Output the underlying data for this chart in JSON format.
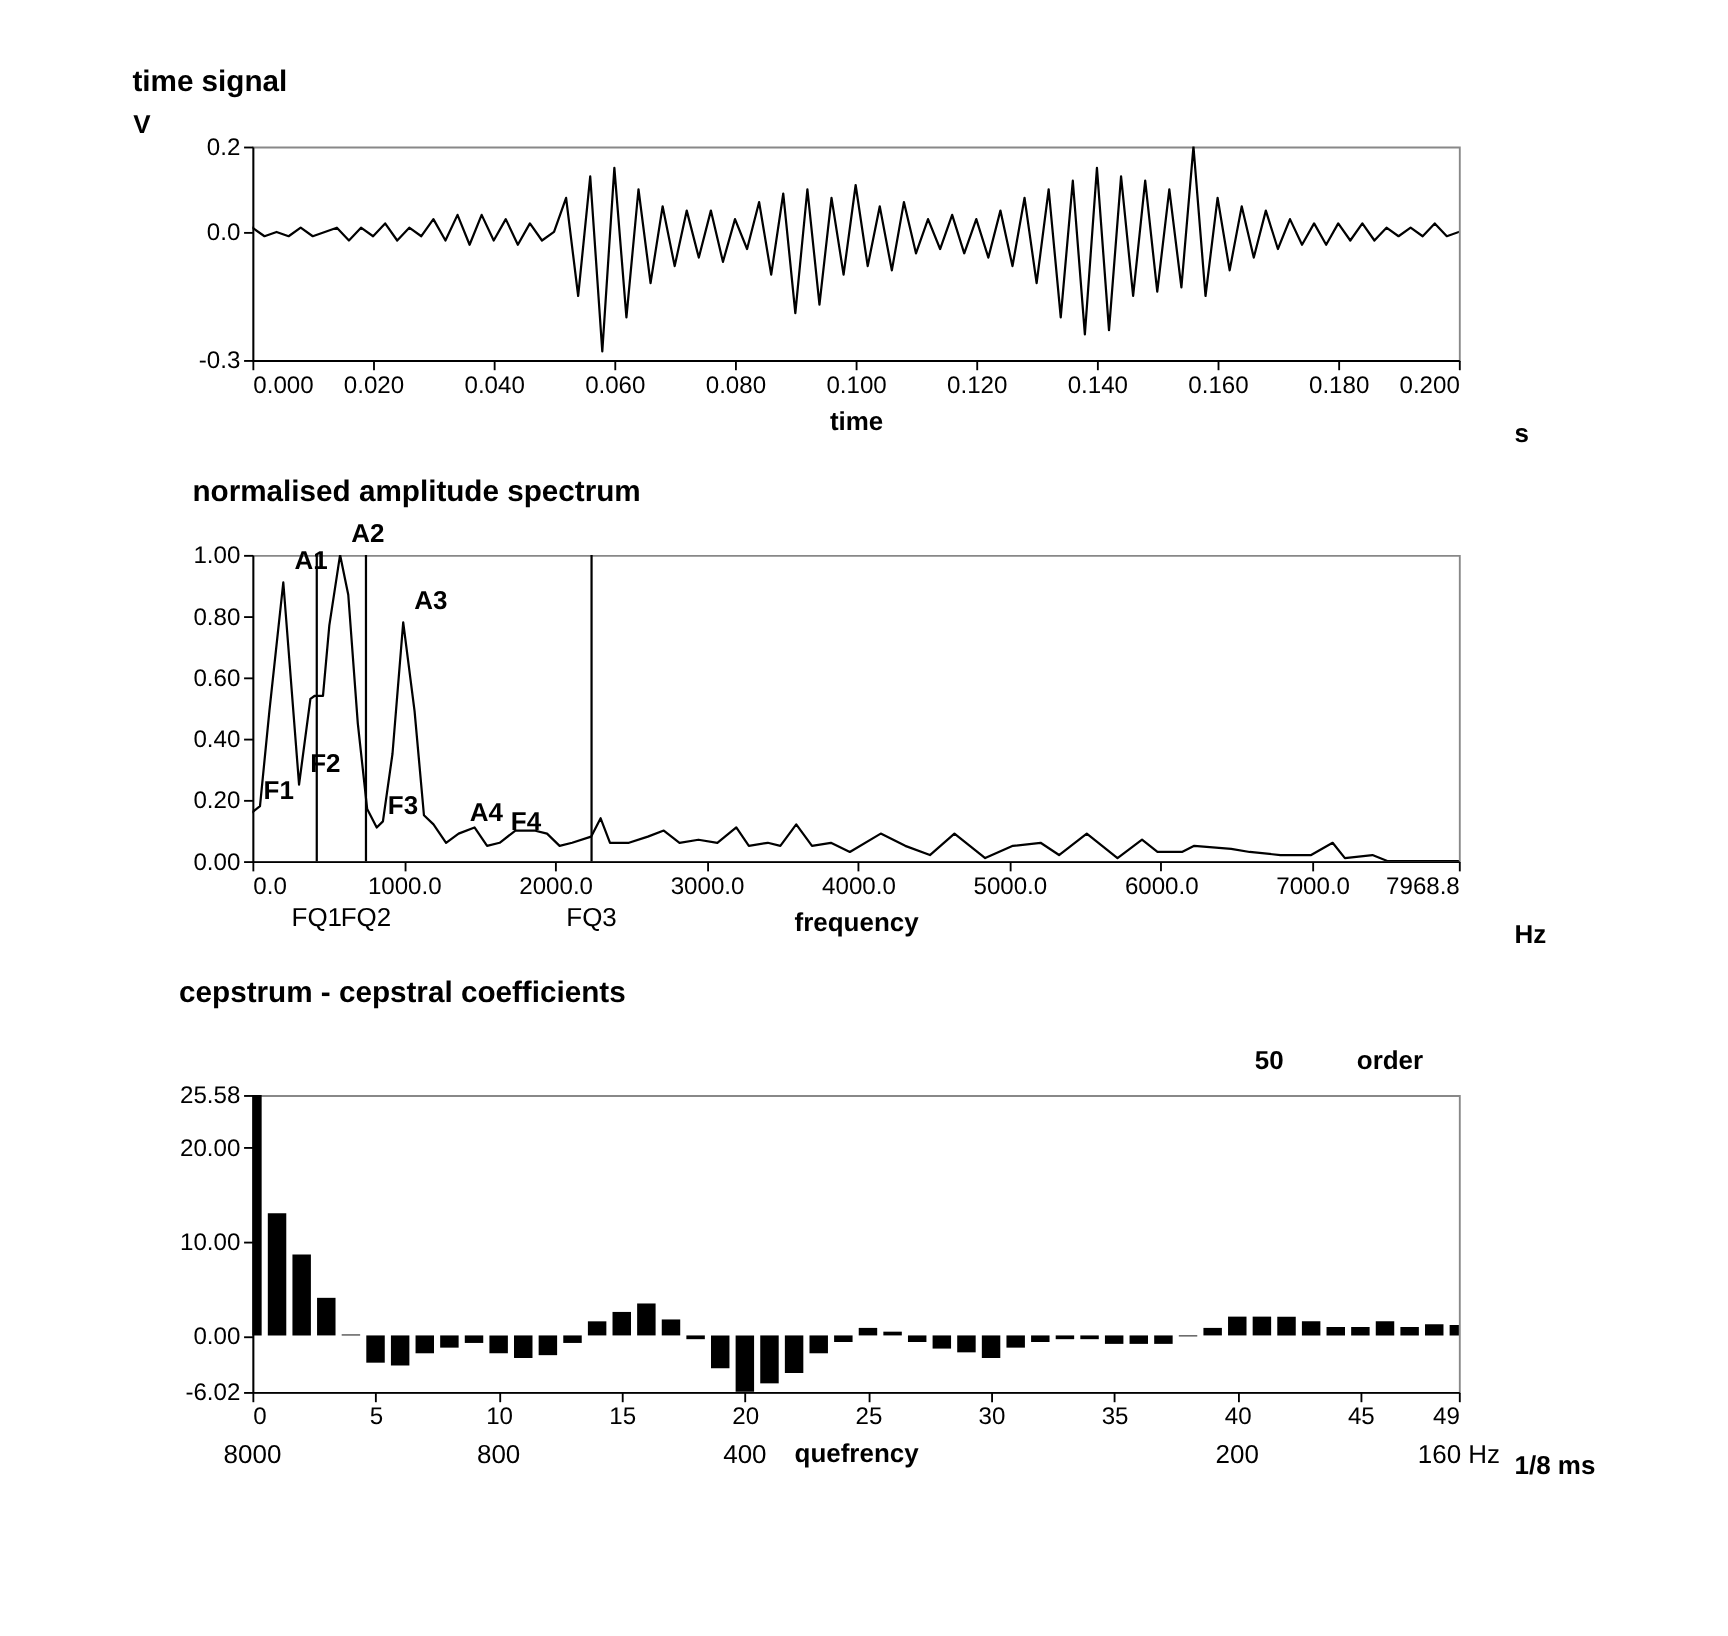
{
  "chart_data": [
    {
      "type": "line",
      "title": "time signal",
      "xlabel": "time",
      "ylabel": "V",
      "annotations": [
        "s"
      ],
      "xlim": [
        0,
        0.2
      ],
      "xticks": [
        {
          "value": 0,
          "label": "0.000"
        },
        {
          "value": 0.02,
          "label": "0.020"
        },
        {
          "value": 0.04,
          "label": "0.040"
        },
        {
          "value": 0.06,
          "label": "0.060"
        },
        {
          "value": 0.08,
          "label": "0.080"
        },
        {
          "value": 0.1,
          "label": "0.100"
        },
        {
          "value": 0.12,
          "label": "0.120"
        },
        {
          "value": 0.14,
          "label": "0.140"
        },
        {
          "value": 0.16,
          "label": "0.160"
        },
        {
          "value": 0.18,
          "label": "0.180"
        },
        {
          "value": 0.2,
          "label": "0.200"
        }
      ],
      "ylim": [
        -0.3,
        0.2
      ],
      "yticks": [
        {
          "value": -0.3,
          "label": "-0.3"
        },
        {
          "value": 0,
          "label": "0.0"
        },
        {
          "value": 0.2,
          "label": "0.2"
        }
      ],
      "x": [
        0,
        0.002,
        0.004,
        0.006,
        0.008,
        0.01,
        0.012,
        0.014,
        0.016,
        0.018,
        0.02,
        0.022,
        0.024,
        0.026,
        0.028,
        0.03,
        0.032,
        0.034,
        0.036,
        0.038,
        0.04,
        0.042,
        0.044,
        0.046,
        0.048,
        0.05,
        0.052,
        0.054,
        0.056,
        0.058,
        0.06,
        0.062,
        0.064,
        0.066,
        0.068,
        0.07,
        0.072,
        0.074,
        0.076,
        0.078,
        0.08,
        0.082,
        0.084,
        0.086,
        0.088,
        0.09,
        0.092,
        0.094,
        0.096,
        0.098,
        0.1,
        0.102,
        0.104,
        0.106,
        0.108,
        0.11,
        0.112,
        0.114,
        0.116,
        0.118,
        0.12,
        0.122,
        0.124,
        0.126,
        0.128,
        0.13,
        0.132,
        0.134,
        0.136,
        0.138,
        0.14,
        0.142,
        0.144,
        0.146,
        0.148,
        0.15,
        0.152,
        0.154,
        0.156,
        0.158,
        0.16,
        0.162,
        0.164,
        0.166,
        0.168,
        0.17,
        0.172,
        0.174,
        0.176,
        0.178,
        0.18,
        0.182,
        0.184,
        0.186,
        0.188,
        0.19,
        0.192,
        0.194,
        0.196,
        0.198,
        0.2
      ],
      "series": [
        {
          "color": "#000000",
          "values": [
            0.01,
            -0.01,
            0.0,
            -0.01,
            0.01,
            -0.01,
            0.0,
            0.01,
            -0.02,
            0.01,
            -0.01,
            0.02,
            -0.02,
            0.01,
            -0.01,
            0.03,
            -0.02,
            0.04,
            -0.03,
            0.04,
            -0.02,
            0.03,
            -0.03,
            0.02,
            -0.02,
            0.0,
            0.08,
            -0.15,
            0.13,
            -0.28,
            0.15,
            -0.2,
            0.1,
            -0.12,
            0.06,
            -0.08,
            0.05,
            -0.06,
            0.05,
            -0.07,
            0.03,
            -0.04,
            0.07,
            -0.1,
            0.09,
            -0.19,
            0.1,
            -0.17,
            0.08,
            -0.1,
            0.11,
            -0.08,
            0.06,
            -0.09,
            0.07,
            -0.05,
            0.03,
            -0.04,
            0.04,
            -0.05,
            0.03,
            -0.06,
            0.05,
            -0.08,
            0.08,
            -0.12,
            0.1,
            -0.2,
            0.12,
            -0.24,
            0.15,
            -0.23,
            0.13,
            -0.15,
            0.12,
            -0.14,
            0.1,
            -0.13,
            0.2,
            -0.15,
            0.08,
            -0.09,
            0.06,
            -0.06,
            0.05,
            -0.04,
            0.03,
            -0.03,
            0.02,
            -0.03,
            0.02,
            -0.02,
            0.02,
            -0.02,
            0.01,
            -0.01,
            0.01,
            -0.01,
            0.02,
            -0.01,
            0.0
          ]
        }
      ]
    },
    {
      "type": "line",
      "title": "normalised amplitude spectrum",
      "xlabel": "frequency",
      "annotations": [
        "Hz",
        {
          "text": "A1",
          "x": 204,
          "y": 0.91
        },
        {
          "text": "A2",
          "x": 579,
          "y": 1.0
        },
        {
          "text": "A3",
          "x": 996,
          "y": 0.78
        },
        {
          "text": "A4",
          "x": 1362,
          "y": 0.09
        },
        {
          "text": "F1",
          "x": 0,
          "y": 0.16
        },
        {
          "text": "F2",
          "x": 308,
          "y": 0.25
        },
        {
          "text": "F3",
          "x": 821,
          "y": 0.11
        },
        {
          "text": "F4",
          "x": 1633,
          "y": 0.06
        }
      ],
      "xlim": [
        0,
        7968.8
      ],
      "xticks": [
        {
          "value": 0,
          "label": "0.0"
        },
        {
          "value": 1000,
          "label": "1000.0"
        },
        {
          "value": 2000,
          "label": "2000.0"
        },
        {
          "value": 3000,
          "label": "3000.0"
        },
        {
          "value": 4000,
          "label": "4000.0"
        },
        {
          "value": 5000,
          "label": "5000.0"
        },
        {
          "value": 6000,
          "label": "6000.0"
        },
        {
          "value": 7000,
          "label": "7000.0"
        },
        {
          "value": 7968.8,
          "label": "7968.8"
        }
      ],
      "ylim": [
        0,
        1
      ],
      "yticks": [
        {
          "value": 0,
          "label": "0.00"
        },
        {
          "value": 0.2,
          "label": "0.20"
        },
        {
          "value": 0.4,
          "label": "0.40"
        },
        {
          "value": 0.6,
          "label": "0.60"
        },
        {
          "value": 0.8,
          "label": "0.80"
        },
        {
          "value": 1,
          "label": "1.00"
        }
      ],
      "ref_lines": [
        {
          "axis": "x",
          "value": 425,
          "label": "FQ1",
          "color": "#000000"
        },
        {
          "axis": "x",
          "value": 750,
          "label": "FQ2",
          "color": "#000000"
        },
        {
          "axis": "x",
          "value": 2240,
          "label": "FQ3",
          "color": "#000000"
        }
      ],
      "x": [
        0,
        50,
        112,
        204,
        308,
        383,
        412,
        466,
        508,
        579,
        633,
        696,
        758,
        821,
        862,
        925,
        996,
        1071,
        1133,
        1196,
        1279,
        1362,
        1467,
        1550,
        1633,
        1737,
        1862,
        1946,
        2029,
        2112,
        2237,
        2300,
        2362,
        2487,
        2612,
        2717,
        2821,
        2946,
        3071,
        3196,
        3279,
        3404,
        3487,
        3592,
        3696,
        3821,
        3946,
        4150,
        4312,
        4475,
        4637,
        4840,
        5023,
        5206,
        5328,
        5511,
        5714,
        5876,
        5978,
        6140,
        6221,
        6465,
        6587,
        6790,
        6993,
        7135,
        7216,
        7398,
        7500,
        7968.8
      ],
      "series": [
        {
          "color": "#000000",
          "values": [
            0.16,
            0.18,
            0.49,
            0.91,
            0.25,
            0.53,
            0.54,
            0.54,
            0.77,
            1.0,
            0.87,
            0.45,
            0.17,
            0.11,
            0.13,
            0.35,
            0.78,
            0.49,
            0.15,
            0.12,
            0.06,
            0.09,
            0.11,
            0.05,
            0.06,
            0.1,
            0.1,
            0.09,
            0.05,
            0.06,
            0.08,
            0.14,
            0.06,
            0.06,
            0.08,
            0.1,
            0.06,
            0.07,
            0.06,
            0.11,
            0.05,
            0.06,
            0.05,
            0.12,
            0.05,
            0.06,
            0.03,
            0.09,
            0.05,
            0.02,
            0.09,
            0.01,
            0.05,
            0.06,
            0.02,
            0.09,
            0.01,
            0.07,
            0.03,
            0.03,
            0.05,
            0.04,
            0.03,
            0.02,
            0.02,
            0.06,
            0.01,
            0.02,
            0.0,
            0.0
          ]
        }
      ]
    },
    {
      "type": "bar",
      "title": "cepstrum - cepstral coefficients",
      "xlabel": "quefrency",
      "annotations": [
        "1/8 ms",
        "8000",
        "800",
        "400",
        "200",
        "160 Hz",
        "50",
        "order"
      ],
      "xlim": [
        0,
        49
      ],
      "xticks": [
        0,
        5,
        10,
        15,
        20,
        25,
        30,
        35,
        40,
        45,
        49
      ],
      "ylim": [
        -6.02,
        25.58
      ],
      "yticks": [
        {
          "value": -6.02,
          "label": "-6.02"
        },
        {
          "value": 0,
          "label": "0.00"
        },
        {
          "value": 10,
          "label": "10.00"
        },
        {
          "value": 20,
          "label": "20.00"
        },
        {
          "value": 25.58,
          "label": "25.58"
        }
      ],
      "x": [
        0,
        1,
        2,
        3,
        4,
        5,
        6,
        7,
        8,
        9,
        10,
        11,
        12,
        13,
        14,
        15,
        16,
        17,
        18,
        19,
        20,
        21,
        22,
        23,
        24,
        25,
        26,
        27,
        28,
        29,
        30,
        31,
        32,
        33,
        34,
        35,
        36,
        37,
        38,
        39,
        40,
        41,
        42,
        43,
        44,
        45,
        46,
        47,
        48,
        49
      ],
      "series": [
        {
          "color": "#000000",
          "values": [
            25.58,
            13.0,
            8.6,
            4.0,
            0.1,
            -2.9,
            -3.2,
            -1.9,
            -1.3,
            -0.8,
            -1.9,
            -2.4,
            -2.1,
            -0.8,
            1.5,
            2.5,
            3.4,
            1.7,
            -0.4,
            -3.5,
            -6.0,
            -5.1,
            -4.0,
            -1.9,
            -0.7,
            0.8,
            0.4,
            -0.7,
            -1.4,
            -1.8,
            -2.4,
            -1.3,
            -0.7,
            -0.4,
            -0.4,
            -0.9,
            -0.9,
            -0.9,
            -0.1,
            0.8,
            2.0,
            2.0,
            2.0,
            1.5,
            0.9,
            0.9,
            1.5,
            0.9,
            1.2,
            1.1
          ]
        }
      ]
    }
  ]
}
